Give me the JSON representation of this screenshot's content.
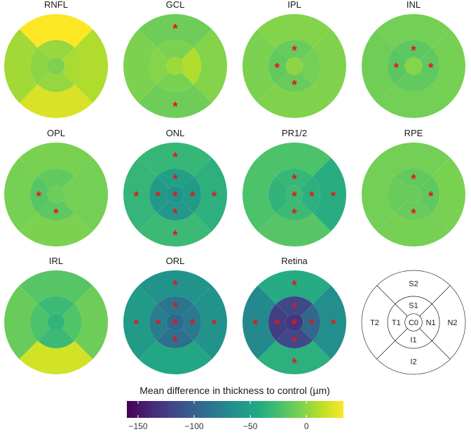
{
  "chart_data": {
    "type": "heatmap",
    "sectors": [
      "C0",
      "S1",
      "N1",
      "I1",
      "T1",
      "S2",
      "N2",
      "I2",
      "T2"
    ],
    "panels": [
      {
        "title": "RNFL",
        "values": {
          "C0": -5,
          "S1": 3,
          "N1": 8,
          "I1": 2,
          "T1": 0,
          "S2": 35,
          "N2": 10,
          "I2": 22,
          "T2": 6
        },
        "significant": []
      },
      {
        "title": "GCL",
        "values": {
          "C0": 5,
          "S1": -5,
          "N1": 10,
          "I1": -6,
          "T1": -2,
          "S2": -10,
          "N2": -3,
          "I2": -10,
          "T2": -5
        },
        "significant": [
          "S2",
          "I2"
        ]
      },
      {
        "title": "IPL",
        "values": {
          "C0": 0,
          "S1": -12,
          "N1": -8,
          "I1": -12,
          "T1": -14,
          "S2": -3,
          "N2": -4,
          "I2": -4,
          "T2": -5
        },
        "significant": [
          "S1",
          "I1",
          "T1"
        ]
      },
      {
        "title": "INL",
        "values": {
          "C0": -2,
          "S1": -16,
          "N1": -15,
          "I1": -14,
          "T1": -17,
          "S2": -8,
          "N2": -7,
          "I2": -8,
          "T2": -9
        },
        "significant": [
          "S1",
          "N1",
          "T1"
        ]
      },
      {
        "title": "OPL",
        "values": {
          "C0": -10,
          "S1": -14,
          "N1": -8,
          "I1": -16,
          "T1": -18,
          "S2": -6,
          "N2": -8,
          "I2": -5,
          "T2": -7
        },
        "significant": [
          "T1",
          "I1"
        ]
      },
      {
        "title": "ONL",
        "values": {
          "C0": -62,
          "S1": -52,
          "N1": -55,
          "I1": -58,
          "T1": -55,
          "S2": -32,
          "N2": -38,
          "I2": -30,
          "T2": -33
        },
        "significant": [
          "C0",
          "S1",
          "N1",
          "I1",
          "T1",
          "S2",
          "N2",
          "I2",
          "T2"
        ]
      },
      {
        "title": "PR1/2",
        "values": {
          "C0": -30,
          "S1": -32,
          "N1": -38,
          "I1": -30,
          "T1": -35,
          "S2": -22,
          "N2": -40,
          "I2": -18,
          "T2": -22
        },
        "significant": [
          "C0",
          "S1",
          "N1",
          "I1",
          "N2"
        ]
      },
      {
        "title": "RPE",
        "values": {
          "C0": -12,
          "S1": -14,
          "N1": -15,
          "I1": -12,
          "T1": -12,
          "S2": -8,
          "N2": -6,
          "I2": -7,
          "T2": -8
        },
        "significant": [
          "S1",
          "N1",
          "I1"
        ]
      },
      {
        "title": "IRL",
        "values": {
          "C0": -35,
          "S1": -30,
          "N1": -20,
          "I1": -30,
          "T1": -22,
          "S2": -18,
          "N2": -10,
          "I2": 20,
          "T2": -12
        },
        "significant": []
      },
      {
        "title": "ORL",
        "values": {
          "C0": -95,
          "S1": -85,
          "N1": -82,
          "I1": -90,
          "T1": -78,
          "S2": -62,
          "N2": -62,
          "I2": -45,
          "T2": -55
        },
        "significant": [
          "C0",
          "S1",
          "N1",
          "I1",
          "T1",
          "S2",
          "N2",
          "T2"
        ]
      },
      {
        "title": "Retina",
        "values": {
          "C0": -130,
          "S1": -118,
          "N1": -95,
          "I1": -118,
          "T1": -125,
          "S2": -42,
          "N2": -65,
          "I2": -38,
          "T2": -70
        },
        "significant": [
          "C0",
          "S1",
          "N1",
          "I1",
          "T1",
          "S2",
          "N2",
          "I2",
          "T2"
        ]
      }
    ],
    "legend": {
      "title": "Mean difference in thickness to control (µm)",
      "ticks": [
        -150,
        -100,
        -50,
        0
      ],
      "tick_labels": [
        "−150",
        "−100",
        "−50",
        "0"
      ],
      "range": [
        -160,
        33
      ],
      "colormap": "viridis",
      "placement": "bottom"
    },
    "marker": "*",
    "marker_color": "#e8141c",
    "reference_panel": {
      "labels": {
        "C0": "C0",
        "S1": "S1",
        "N1": "N1",
        "I1": "I1",
        "T1": "T1",
        "S2": "S2",
        "N2": "N2",
        "I2": "I2",
        "T2": "T2"
      }
    }
  }
}
